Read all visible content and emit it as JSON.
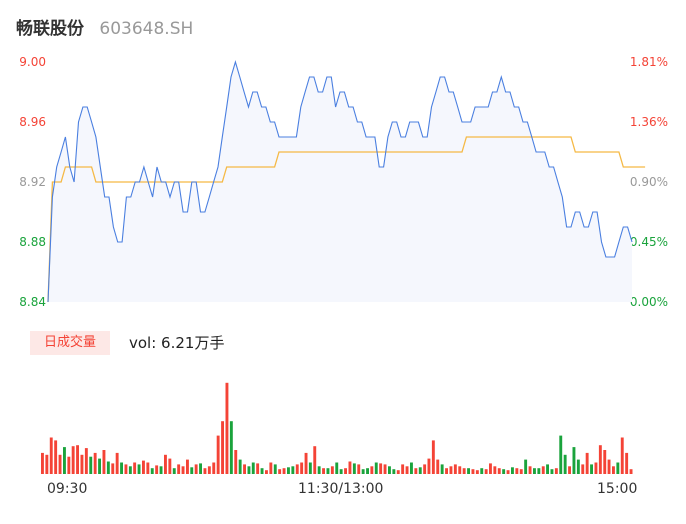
{
  "header": {
    "name": "畅联股份",
    "code": "603648.SH"
  },
  "volume_panel": {
    "badge": "日成交量",
    "vol_label": "vol: 6.21万手"
  },
  "colors": {
    "price_line": "#4a7fe0",
    "avg_line": "#f5b945",
    "up": "#f44336",
    "down": "#1aa33c",
    "neutral": "#999999"
  },
  "chart_data": [
    {
      "type": "line",
      "ylim": [
        8.84,
        9.0
      ],
      "y_ticks_left": [
        "9.00",
        "8.96",
        "8.92",
        "8.88",
        "8.84"
      ],
      "y_ticks_right": [
        "1.81%",
        "1.36%",
        "0.90%",
        "0.45%",
        "0.00%"
      ],
      "x_ticks": [
        "09:30",
        "11:30/13:00",
        "15:00"
      ],
      "series": [
        {
          "values": [
            8.84,
            8.91,
            8.93,
            8.94,
            8.95,
            8.93,
            8.92,
            8.96,
            8.97,
            8.97,
            8.96,
            8.95,
            8.93,
            8.91,
            8.91,
            8.89,
            8.88,
            8.88,
            8.91,
            8.91,
            8.92,
            8.92,
            8.93,
            8.92,
            8.91,
            8.93,
            8.92,
            8.92,
            8.91,
            8.92,
            8.92,
            8.9,
            8.9,
            8.92,
            8.92,
            8.9,
            8.9,
            8.91,
            8.92,
            8.93,
            8.95,
            8.97,
            8.99,
            9.0,
            8.99,
            8.98,
            8.97,
            8.98,
            8.98,
            8.97,
            8.97,
            8.96,
            8.96,
            8.95,
            8.95,
            8.95,
            8.95,
            8.95,
            8.97,
            8.98,
            8.99,
            8.99,
            8.98,
            8.98,
            8.99,
            8.99,
            8.97,
            8.98,
            8.98,
            8.97,
            8.97,
            8.96,
            8.96,
            8.95,
            8.95,
            8.95,
            8.93,
            8.93,
            8.95,
            8.96,
            8.96,
            8.95,
            8.95,
            8.96,
            8.96,
            8.96,
            8.95,
            8.95,
            8.97,
            8.98,
            8.99,
            8.99,
            8.98,
            8.98,
            8.97,
            8.96,
            8.96,
            8.96,
            8.97,
            8.97,
            8.97,
            8.97,
            8.98,
            8.98,
            8.99,
            8.98,
            8.98,
            8.97,
            8.97,
            8.96,
            8.96,
            8.95,
            8.94,
            8.94,
            8.94,
            8.93,
            8.93,
            8.92,
            8.91,
            8.89,
            8.89,
            8.9,
            8.9,
            8.89,
            8.89,
            8.9,
            8.9,
            8.88,
            8.87,
            8.87,
            8.87,
            8.88,
            8.89,
            8.89,
            8.88
          ],
          "range": {
            "min": 8.84,
            "max": 9.0
          }
        },
        {
          "values": [
            8.84,
            8.92,
            8.92,
            8.92,
            8.93,
            8.93,
            8.93,
            8.93,
            8.93,
            8.93,
            8.93,
            8.92,
            8.92,
            8.92,
            8.92,
            8.92,
            8.92,
            8.92,
            8.92,
            8.92,
            8.92,
            8.92,
            8.92,
            8.92,
            8.92,
            8.92,
            8.92,
            8.92,
            8.92,
            8.92,
            8.92,
            8.92,
            8.92,
            8.92,
            8.92,
            8.92,
            8.92,
            8.92,
            8.92,
            8.92,
            8.92,
            8.93,
            8.93,
            8.93,
            8.93,
            8.93,
            8.93,
            8.93,
            8.93,
            8.93,
            8.93,
            8.93,
            8.93,
            8.94,
            8.94,
            8.94,
            8.94,
            8.94,
            8.94,
            8.94,
            8.94,
            8.94,
            8.94,
            8.94,
            8.94,
            8.94,
            8.94,
            8.94,
            8.94,
            8.94,
            8.94,
            8.94,
            8.94,
            8.94,
            8.94,
            8.94,
            8.94,
            8.94,
            8.94,
            8.94,
            8.94,
            8.94,
            8.94,
            8.94,
            8.94,
            8.94,
            8.94,
            8.94,
            8.94,
            8.94,
            8.94,
            8.94,
            8.94,
            8.94,
            8.94,
            8.94,
            8.95,
            8.95,
            8.95,
            8.95,
            8.95,
            8.95,
            8.95,
            8.95,
            8.95,
            8.95,
            8.95,
            8.95,
            8.95,
            8.95,
            8.95,
            8.95,
            8.95,
            8.95,
            8.95,
            8.95,
            8.95,
            8.95,
            8.95,
            8.95,
            8.95,
            8.94,
            8.94,
            8.94,
            8.94,
            8.94,
            8.94,
            8.94,
            8.94,
            8.94,
            8.94,
            8.94,
            8.93,
            8.93,
            8.93,
            8.93,
            8.93,
            8.93
          ],
          "range": {
            "min": 8.84,
            "max": 9.0
          }
        }
      ]
    },
    {
      "type": "bar",
      "series": [
        {
          "name": "日成交量",
          "values": [
            0.22,
            0.2,
            0.38,
            0.35,
            0.2,
            0.28,
            0.18,
            0.29,
            0.3,
            0.2,
            0.27,
            0.18,
            0.22,
            0.16,
            0.25,
            0.13,
            0.11,
            0.22,
            0.12,
            0.1,
            0.08,
            0.12,
            0.1,
            0.14,
            0.12,
            0.06,
            0.09,
            0.08,
            0.2,
            0.16,
            0.06,
            0.1,
            0.08,
            0.15,
            0.07,
            0.1,
            0.11,
            0.06,
            0.08,
            0.12,
            0.4,
            0.55,
            0.95,
            0.55,
            0.25,
            0.15,
            0.1,
            0.08,
            0.12,
            0.11,
            0.06,
            0.04,
            0.12,
            0.1,
            0.05,
            0.06,
            0.07,
            0.08,
            0.1,
            0.12,
            0.22,
            0.12,
            0.29,
            0.08,
            0.06,
            0.06,
            0.08,
            0.12,
            0.05,
            0.06,
            0.13,
            0.11,
            0.1,
            0.05,
            0.06,
            0.08,
            0.12,
            0.11,
            0.1,
            0.08,
            0.05,
            0.04,
            0.1,
            0.08,
            0.12,
            0.06,
            0.07,
            0.1,
            0.16,
            0.35,
            0.15,
            0.1,
            0.06,
            0.08,
            0.1,
            0.08,
            0.06,
            0.06,
            0.05,
            0.04,
            0.06,
            0.05,
            0.11,
            0.08,
            0.06,
            0.05,
            0.04,
            0.07,
            0.06,
            0.05,
            0.15,
            0.08,
            0.06,
            0.06,
            0.08,
            0.1,
            0.05,
            0.06,
            0.4,
            0.2,
            0.08,
            0.28,
            0.15,
            0.1,
            0.22,
            0.1,
            0.12,
            0.3,
            0.25,
            0.15,
            0.08,
            0.12,
            0.38,
            0.22,
            0.05
          ],
          "directions": [
            "u",
            "u",
            "u",
            "u",
            "u",
            "d",
            "u",
            "u",
            "u",
            "u",
            "u",
            "d",
            "u",
            "d",
            "u",
            "d",
            "u",
            "u",
            "d",
            "u",
            "d",
            "u",
            "d",
            "u",
            "u",
            "d",
            "u",
            "d",
            "u",
            "u",
            "d",
            "u",
            "u",
            "u",
            "d",
            "u",
            "d",
            "u",
            "u",
            "u",
            "u",
            "u",
            "u",
            "d",
            "u",
            "d",
            "u",
            "d",
            "d",
            "u",
            "d",
            "u",
            "u",
            "d",
            "u",
            "u",
            "d",
            "d",
            "u",
            "u",
            "u",
            "d",
            "u",
            "d",
            "u",
            "d",
            "u",
            "d",
            "d",
            "u",
            "u",
            "d",
            "u",
            "d",
            "d",
            "u",
            "d",
            "u",
            "u",
            "d",
            "d",
            "u",
            "u",
            "u",
            "d",
            "u",
            "d",
            "u",
            "u",
            "u",
            "u",
            "d",
            "u",
            "u",
            "u",
            "u",
            "u",
            "d",
            "u",
            "u",
            "d",
            "u",
            "u",
            "u",
            "u",
            "d",
            "u",
            "d",
            "u",
            "u",
            "d",
            "u",
            "d",
            "d",
            "u",
            "d",
            "d",
            "u",
            "d",
            "d",
            "u",
            "d",
            "d",
            "u",
            "u",
            "d",
            "u",
            "u",
            "u",
            "u",
            "u",
            "d",
            "u",
            "u",
            "u",
            "u",
            "d"
          ],
          "range": {
            "min": 0,
            "max": 1
          }
        }
      ]
    }
  ]
}
